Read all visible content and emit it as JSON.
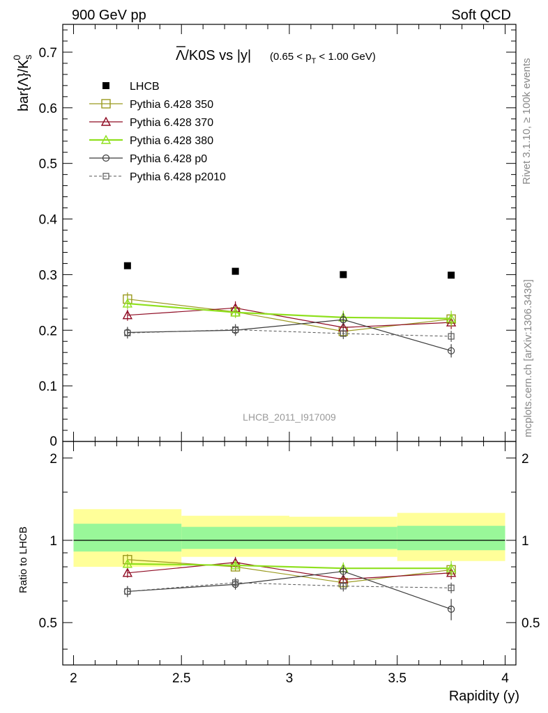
{
  "header": {
    "left": "900 GeV pp",
    "right": "Soft QCD"
  },
  "side_labels": {
    "rivet": "Rivet 3.1.10, ≥ 100k events",
    "mcplots": "mcplots.cern.ch [arXiv:1306.3436]"
  },
  "watermark": "LHCB_2011_I917009",
  "colors": {
    "data": "#000000",
    "p350": "#9a9a1e",
    "p370": "#8e0a22",
    "p380": "#8fe01e",
    "p0": "#3a3a3a",
    "p2010": "#555555",
    "band_inner": "#99f799",
    "band_outer": "#ffff99"
  },
  "chart_data": [
    {
      "type": "scatter",
      "panel": "main",
      "title_main": "Λ/K0S vs |y|",
      "title_overline_char": "Λ",
      "title_rest": "/K0S vs |y|",
      "title_range": "(0.65 < p",
      "title_range_sub": "T",
      "title_range_end": " < 1.00 GeV)",
      "ylabel": "bar{Λ}/K",
      "ylabel_sub": "s",
      "ylabel_sup": "0",
      "ylim": [
        0,
        0.75
      ],
      "xlim": [
        1.95,
        4.05
      ],
      "yticks": [
        {
          "v": 0.1,
          "label": "0.1"
        },
        {
          "v": 0.2,
          "label": "0.2"
        },
        {
          "v": 0.3,
          "label": "0.3"
        },
        {
          "v": 0.4,
          "label": "0.4"
        },
        {
          "v": 0.5,
          "label": "0.5"
        },
        {
          "v": 0.6,
          "label": "0.6"
        },
        {
          "v": 0.7,
          "label": "0.7"
        }
      ],
      "y0_label": "0",
      "legend_position": "top-left",
      "x": [
        2.25,
        2.75,
        3.25,
        3.75
      ],
      "series": [
        {
          "key": "data",
          "name": "LHCB",
          "values": [
            0.316,
            0.306,
            0.3,
            0.299
          ],
          "errors": [
            0.004,
            0.004,
            0.004,
            0.004
          ],
          "marker": "filled-square",
          "line": "none"
        },
        {
          "key": "p350",
          "name": "Pythia 6.428 350",
          "values": [
            0.256,
            0.233,
            0.198,
            0.22
          ],
          "errors": [
            0.012,
            0.01,
            0.01,
            0.01
          ],
          "marker": "open-square",
          "line": "solid"
        },
        {
          "key": "p370",
          "name": "Pythia 6.428 370",
          "values": [
            0.227,
            0.24,
            0.205,
            0.214
          ],
          "errors": [
            0.01,
            0.012,
            0.012,
            0.012
          ],
          "marker": "open-triangle",
          "line": "solid"
        },
        {
          "key": "p380",
          "name": "Pythia 6.428 380",
          "values": [
            0.248,
            0.232,
            0.223,
            0.221
          ],
          "errors": [
            0.01,
            0.01,
            0.012,
            0.014
          ],
          "marker": "open-triangle",
          "line": "solid-thick"
        },
        {
          "key": "p0",
          "name": "Pythia 6.428 p0",
          "values": [
            0.196,
            0.2,
            0.219,
            0.163
          ],
          "errors": [
            0.01,
            0.01,
            0.012,
            0.012
          ],
          "marker": "open-circle",
          "line": "solid"
        },
        {
          "key": "p2010",
          "name": "Pythia 6.428 p2010",
          "values": [
            0.195,
            0.201,
            0.194,
            0.189
          ],
          "errors": [
            0.01,
            0.01,
            0.01,
            0.01
          ],
          "marker": "open-square-small",
          "line": "dashed"
        }
      ]
    },
    {
      "type": "scatter",
      "panel": "ratio",
      "ylabel": "Ratio to LHCB",
      "ylim": [
        0.35,
        2.3
      ],
      "log_y": true,
      "xlim": [
        1.95,
        4.05
      ],
      "yticks": [
        {
          "v": 0.5,
          "label": "0.5"
        },
        {
          "v": 1,
          "label": "1"
        },
        {
          "v": 2,
          "label": "2"
        }
      ],
      "xticks": [
        {
          "v": 2,
          "label": "2"
        },
        {
          "v": 2.5,
          "label": "2.5"
        },
        {
          "v": 3,
          "label": "3"
        },
        {
          "v": 3.5,
          "label": "3.5"
        },
        {
          "v": 4,
          "label": "4"
        }
      ],
      "xlabel": "Rapidity (y)",
      "bands": [
        {
          "x0": 2.0,
          "x1": 2.5,
          "inner": [
            0.91,
            1.15
          ],
          "outer": [
            0.8,
            1.3
          ]
        },
        {
          "x0": 2.5,
          "x1": 3.0,
          "inner": [
            0.93,
            1.12
          ],
          "outer": [
            0.87,
            1.23
          ]
        },
        {
          "x0": 3.0,
          "x1": 3.5,
          "inner": [
            0.93,
            1.12
          ],
          "outer": [
            0.87,
            1.22
          ]
        },
        {
          "x0": 3.5,
          "x1": 4.0,
          "inner": [
            0.92,
            1.13
          ],
          "outer": [
            0.84,
            1.26
          ]
        }
      ],
      "x": [
        2.25,
        2.75,
        3.25,
        3.75
      ],
      "series": [
        {
          "key": "p350",
          "name": "Pythia 6.428 350",
          "values": [
            0.85,
            0.8,
            0.7,
            0.78
          ],
          "errors": [
            0.04,
            0.03,
            0.03,
            0.03
          ]
        },
        {
          "key": "p370",
          "name": "Pythia 6.428 370",
          "values": [
            0.76,
            0.83,
            0.72,
            0.76
          ],
          "errors": [
            0.03,
            0.04,
            0.04,
            0.04
          ]
        },
        {
          "key": "p380",
          "name": "Pythia 6.428 380",
          "values": [
            0.82,
            0.81,
            0.79,
            0.79
          ],
          "errors": [
            0.03,
            0.03,
            0.04,
            0.05
          ]
        },
        {
          "key": "p0",
          "name": "Pythia 6.428 p0",
          "values": [
            0.65,
            0.69,
            0.77,
            0.56
          ],
          "errors": [
            0.03,
            0.03,
            0.04,
            0.05
          ]
        },
        {
          "key": "p2010",
          "name": "Pythia 6.428 p2010",
          "values": [
            0.65,
            0.7,
            0.68,
            0.67
          ],
          "errors": [
            0.03,
            0.03,
            0.03,
            0.03
          ]
        }
      ]
    }
  ]
}
